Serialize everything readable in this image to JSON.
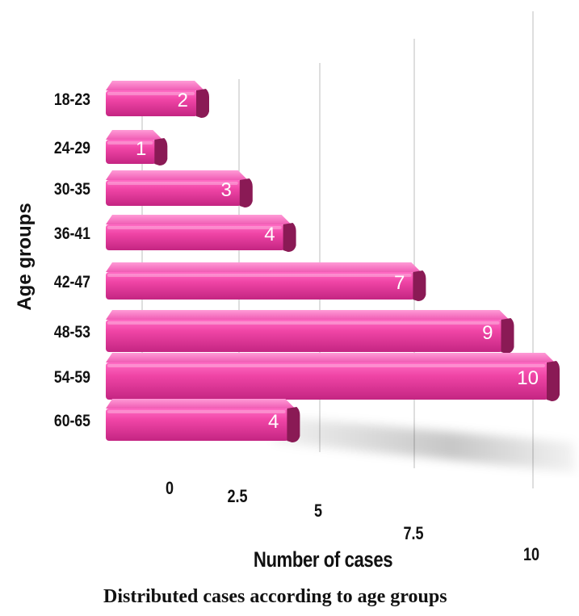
{
  "chart_data": {
    "type": "bar",
    "orientation": "horizontal",
    "style": "3d",
    "caption": "Distributed cases according to age groups",
    "xlabel": "Number of cases",
    "ylabel": "Age groups",
    "xlim": [
      0,
      10
    ],
    "x_ticks": [
      "0",
      "2.5",
      "5",
      "7.5",
      "10"
    ],
    "grid": true,
    "legend": "none",
    "categories": [
      "18-23",
      "24-29",
      "30-35",
      "36-41",
      "42-47",
      "48-53",
      "54-59",
      "60-65"
    ],
    "values": [
      2,
      1,
      3,
      4,
      7,
      9,
      10,
      4
    ],
    "bar_color": "#e6399e",
    "bar_color_dark": "#8a1a55"
  }
}
